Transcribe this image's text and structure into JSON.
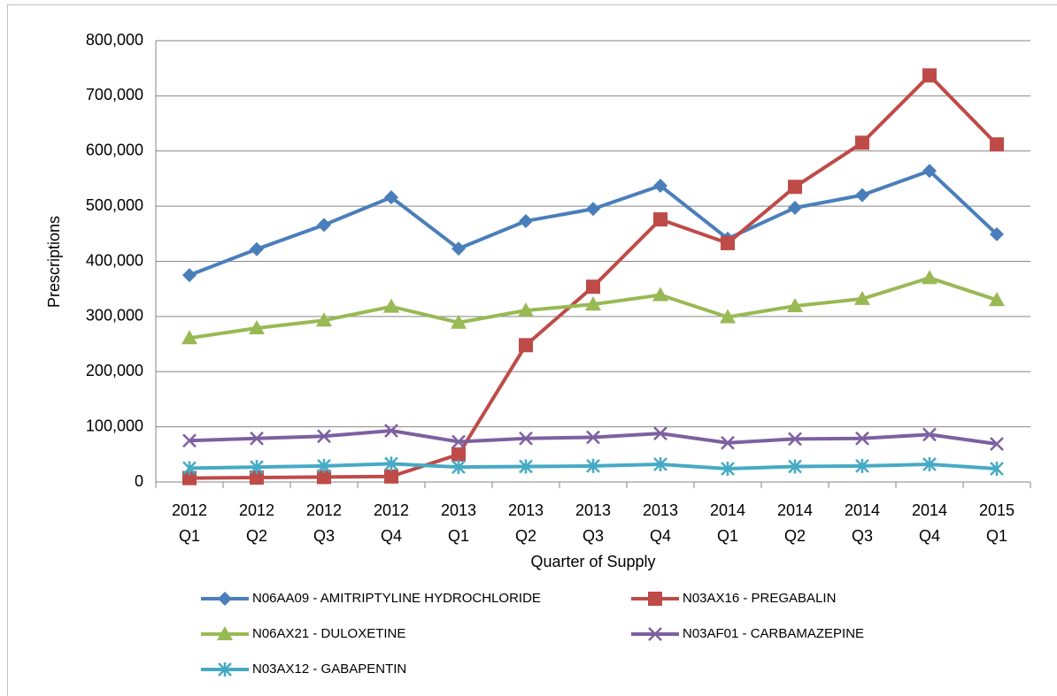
{
  "chart_data": {
    "type": "line",
    "y_label": "Prescriptions",
    "x_label": "Quarter of Supply",
    "categories": [
      [
        "2012",
        "Q1"
      ],
      [
        "2012",
        "Q2"
      ],
      [
        "2012",
        "Q3"
      ],
      [
        "2012",
        "Q4"
      ],
      [
        "2013",
        "Q1"
      ],
      [
        "2013",
        "Q2"
      ],
      [
        "2013",
        "Q3"
      ],
      [
        "2013",
        "Q4"
      ],
      [
        "2014",
        "Q1"
      ],
      [
        "2014",
        "Q2"
      ],
      [
        "2014",
        "Q3"
      ],
      [
        "2014",
        "Q4"
      ],
      [
        "2015",
        "Q1"
      ]
    ],
    "series": [
      {
        "name": "N06AA09 - AMITRIPTYLINE HYDROCHLORIDE",
        "color": "#4a7ebb",
        "marker": "diamond",
        "values": [
          375000,
          422000,
          466000,
          516000,
          423000,
          473000,
          495000,
          537000,
          441000,
          497000,
          520000,
          564000,
          449000
        ]
      },
      {
        "name": "N03AX16 - PREGABALIN",
        "color": "#be4b48",
        "marker": "square",
        "values": [
          7000,
          8000,
          9000,
          10000,
          50000,
          248000,
          354000,
          476000,
          433000,
          535000,
          615000,
          737000,
          612000
        ]
      },
      {
        "name": "N06AX21 - DULOXETINE",
        "color": "#98b954",
        "marker": "triangle",
        "values": [
          261000,
          279000,
          293000,
          318000,
          289000,
          311000,
          322000,
          339000,
          299000,
          319000,
          332000,
          370000,
          330000
        ]
      },
      {
        "name": "N03AF01 - CARBAMAZEPINE",
        "color": "#7d60a0",
        "marker": "x",
        "values": [
          75000,
          79000,
          83000,
          93000,
          73000,
          79000,
          81000,
          88000,
          71000,
          78000,
          79000,
          86000,
          69000
        ]
      },
      {
        "name": "N03AX12 - GABAPENTIN",
        "color": "#46aac5",
        "marker": "asterisk",
        "values": [
          25000,
          27000,
          29000,
          33000,
          27000,
          28000,
          29000,
          32000,
          24000,
          28000,
          29000,
          32000,
          24000
        ]
      }
    ],
    "ylim": [
      0,
      800000
    ],
    "yticks": [
      0,
      {
        "value": 100000,
        "label": "100,000"
      },
      {
        "value": 200000,
        "label": "200,000"
      },
      {
        "value": 300000,
        "label": "300,000"
      },
      {
        "value": 400000,
        "label": "400,000"
      },
      {
        "value": 500000,
        "label": "500,000"
      },
      {
        "value": 600000,
        "label": "600,000"
      },
      {
        "value": 700000,
        "label": "700,000"
      },
      {
        "value": 800000,
        "label": "800,000"
      }
    ],
    "grid": true,
    "legend": "bottom"
  }
}
